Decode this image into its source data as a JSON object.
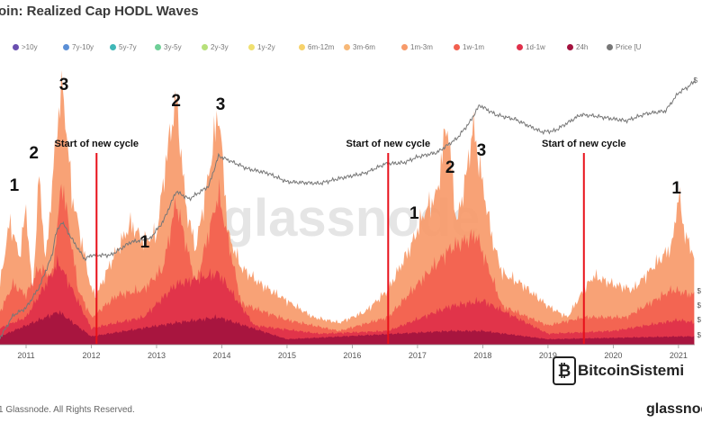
{
  "page": {
    "title": "oin: Realized Cap HODL Waves",
    "watermark": "glassnode",
    "footer": "1 Glassnode. All Rights Reserved.",
    "brand": "BitcoinSistemi",
    "brand_sub": "glassnode",
    "price_axis_top": "$",
    "price_axis_side": [
      "$",
      "$",
      "$",
      "$"
    ]
  },
  "legend": [
    {
      "label": ">10y",
      "color": "#6a4fb0"
    },
    {
      "label": "7y-10y",
      "color": "#5b8fd6"
    },
    {
      "label": "5y-7y",
      "color": "#3fb7b7"
    },
    {
      "label": "3y-5y",
      "color": "#6fcf97"
    },
    {
      "label": "2y-3y",
      "color": "#b7e07a"
    },
    {
      "label": "1y-2y",
      "color": "#f0e070"
    },
    {
      "label": "6m-12m",
      "color": "#f7d26b"
    },
    {
      "label": "3m-6m",
      "color": "#f7b878"
    },
    {
      "label": "1m-3m",
      "color": "#f79a6a"
    },
    {
      "label": "1w-1m",
      "color": "#f2604f"
    },
    {
      "label": "1d-1w",
      "color": "#e0304a"
    },
    {
      "label": "24h",
      "color": "#a3123e"
    },
    {
      "label": "Price [U",
      "color": "#777777"
    }
  ],
  "chart_data": {
    "type": "area",
    "title": "Realized Cap HODL Waves",
    "x_range": [
      2010.6,
      2021.25
    ],
    "y_range_percent": [
      0,
      100
    ],
    "xticks": [
      "2011",
      "2012",
      "2013",
      "2014",
      "2015",
      "2016",
      "2017",
      "2018",
      "2019",
      "2020",
      "2021"
    ],
    "xtick_values": [
      2011,
      2012,
      2013,
      2014,
      2015,
      2016,
      2017,
      2018,
      2019,
      2020,
      2021
    ],
    "annotations": [
      {
        "text": "1",
        "x": 2010.82
      },
      {
        "text": "2",
        "x": 2011.12
      },
      {
        "text": "3",
        "x": 2011.58
      },
      {
        "text": "1",
        "x": 2012.82
      },
      {
        "text": "2",
        "x": 2013.3
      },
      {
        "text": "3",
        "x": 2013.98
      },
      {
        "text": "1",
        "x": 2016.95
      },
      {
        "text": "2",
        "x": 2017.5
      },
      {
        "text": "3",
        "x": 2017.98
      },
      {
        "text": "1",
        "x": 2020.97
      }
    ],
    "cycle_lines": [
      {
        "label": "Start of new cycle",
        "x": 2012.08
      },
      {
        "label": "Start of new cycle",
        "x": 2016.55
      },
      {
        "label": "Start of new cycle",
        "x": 2019.55
      }
    ],
    "series": [
      {
        "name": "1m-3m (upper envelope, approx %)",
        "color": "#f79a6a",
        "x": [
          2010.6,
          2010.75,
          2010.9,
          2011.0,
          2011.1,
          2011.2,
          2011.3,
          2011.45,
          2011.55,
          2011.7,
          2011.85,
          2012.0,
          2012.08,
          2012.3,
          2012.6,
          2012.8,
          2013.0,
          2013.15,
          2013.3,
          2013.45,
          2013.6,
          2013.8,
          2013.95,
          2014.1,
          2014.3,
          2014.6,
          2015.0,
          2015.4,
          2015.8,
          2016.2,
          2016.55,
          2016.9,
          2017.1,
          2017.3,
          2017.45,
          2017.6,
          2017.75,
          2017.85,
          2018.0,
          2018.15,
          2018.3,
          2018.6,
          2019.0,
          2019.3,
          2019.55,
          2019.7,
          2020.0,
          2020.3,
          2020.6,
          2020.9,
          2021.0,
          2021.1,
          2021.25
        ],
        "values": [
          22,
          45,
          32,
          50,
          18,
          62,
          30,
          72,
          97,
          55,
          38,
          20,
          18,
          30,
          44,
          38,
          40,
          68,
          90,
          50,
          35,
          62,
          86,
          40,
          28,
          22,
          16,
          10,
          8,
          12,
          20,
          36,
          48,
          55,
          82,
          44,
          62,
          80,
          58,
          38,
          26,
          22,
          14,
          10,
          20,
          25,
          22,
          20,
          28,
          36,
          55,
          40,
          32
        ]
      },
      {
        "name": "1w-1m (approx %)",
        "color": "#f2604f",
        "x": [
          2010.6,
          2010.8,
          2011.0,
          2011.2,
          2011.4,
          2011.55,
          2011.8,
          2012.0,
          2012.4,
          2012.8,
          2013.1,
          2013.3,
          2013.6,
          2013.95,
          2014.3,
          2015.0,
          2015.8,
          2016.55,
          2017.0,
          2017.5,
          2017.9,
          2018.3,
          2019.0,
          2019.55,
          2020.2,
          2020.9,
          2021.25
        ],
        "values": [
          12,
          22,
          18,
          28,
          25,
          60,
          20,
          10,
          18,
          20,
          28,
          52,
          22,
          55,
          15,
          9,
          5,
          10,
          22,
          35,
          40,
          14,
          7,
          10,
          10,
          20,
          18
        ]
      },
      {
        "name": "1d-1w (approx %)",
        "color": "#e0304a",
        "x": [
          2010.6,
          2011.0,
          2011.5,
          2012.0,
          2012.8,
          2013.3,
          2013.95,
          2014.5,
          2015.5,
          2016.55,
          2017.5,
          2018.0,
          2019.0,
          2020.0,
          2021.0,
          2021.25
        ],
        "values": [
          6,
          10,
          30,
          6,
          10,
          22,
          26,
          7,
          4,
          5,
          14,
          16,
          4,
          5,
          9,
          8
        ]
      },
      {
        "name": "24h (approx %)",
        "color": "#a3123e",
        "x": [
          2010.6,
          2011.5,
          2012.0,
          2013.3,
          2013.95,
          2015.0,
          2017.5,
          2018.0,
          2019.0,
          2021.0,
          2021.25
        ],
        "values": [
          3,
          12,
          3,
          8,
          10,
          2,
          5,
          5,
          2,
          3,
          3
        ]
      }
    ],
    "price_line": {
      "name": "Price [USD] (log scale, approx)",
      "color": "#777777",
      "x": [
        2010.6,
        2010.8,
        2011.0,
        2011.2,
        2011.4,
        2011.45,
        2011.55,
        2011.7,
        2011.9,
        2012.0,
        2012.3,
        2012.6,
        2012.9,
        2013.1,
        2013.3,
        2013.5,
        2013.8,
        2013.95,
        2014.1,
        2014.4,
        2014.7,
        2015.0,
        2015.5,
        2015.8,
        2016.2,
        2016.5,
        2016.8,
        2017.0,
        2017.3,
        2017.6,
        2017.8,
        2017.95,
        2018.2,
        2018.5,
        2018.9,
        2019.1,
        2019.5,
        2019.7,
        2020.0,
        2020.2,
        2020.5,
        2020.8,
        2021.0,
        2021.15,
        2021.25
      ],
      "values": [
        0.06,
        0.2,
        0.3,
        0.9,
        5,
        15,
        30,
        12,
        4,
        5,
        5,
        10,
        12,
        30,
        150,
        100,
        200,
        1000,
        800,
        500,
        400,
        250,
        230,
        300,
        400,
        650,
        700,
        950,
        1200,
        2500,
        6000,
        15000,
        9000,
        7000,
        3600,
        3800,
        9000,
        8500,
        7200,
        6500,
        9500,
        11000,
        29000,
        40000,
        55000
      ]
    }
  }
}
